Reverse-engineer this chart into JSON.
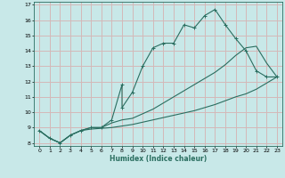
{
  "xlabel": "Humidex (Indice chaleur)",
  "bg_color": "#c8e8e8",
  "grid_color": "#d4b8b8",
  "line_color": "#2a6e60",
  "xlim": [
    -0.5,
    23.5
  ],
  "ylim": [
    7.8,
    17.2
  ],
  "xticks": [
    0,
    1,
    2,
    3,
    4,
    5,
    6,
    7,
    8,
    9,
    10,
    11,
    12,
    13,
    14,
    15,
    16,
    17,
    18,
    19,
    20,
    21,
    22,
    23
  ],
  "yticks": [
    8,
    9,
    10,
    11,
    12,
    13,
    14,
    15,
    16,
    17
  ],
  "line1_x": [
    0,
    1,
    2,
    3,
    4,
    5,
    6,
    7,
    8,
    8,
    9,
    10,
    11,
    12,
    13,
    14,
    15,
    16,
    17,
    18,
    19,
    20,
    21,
    22,
    23
  ],
  "line1_y": [
    8.8,
    8.3,
    8.0,
    8.5,
    8.8,
    9.0,
    9.0,
    9.5,
    11.8,
    10.3,
    11.3,
    13.0,
    14.2,
    14.5,
    14.5,
    15.7,
    15.5,
    16.3,
    16.7,
    15.7,
    14.8,
    14.0,
    12.7,
    12.3,
    12.3
  ],
  "line2_x": [
    0,
    1,
    2,
    3,
    4,
    5,
    6,
    7,
    8,
    9,
    10,
    11,
    12,
    13,
    14,
    15,
    16,
    17,
    18,
    19,
    20,
    21,
    22,
    23
  ],
  "line2_y": [
    8.8,
    8.3,
    8.0,
    8.5,
    8.8,
    8.9,
    8.95,
    9.0,
    9.1,
    9.2,
    9.35,
    9.5,
    9.65,
    9.8,
    9.95,
    10.1,
    10.3,
    10.5,
    10.75,
    11.0,
    11.2,
    11.5,
    11.9,
    12.3
  ],
  "line3_x": [
    0,
    1,
    2,
    3,
    4,
    5,
    6,
    7,
    8,
    9,
    10,
    11,
    12,
    13,
    14,
    15,
    16,
    17,
    18,
    19,
    20,
    21,
    22,
    23
  ],
  "line3_y": [
    8.8,
    8.3,
    8.0,
    8.5,
    8.8,
    9.0,
    9.0,
    9.3,
    9.5,
    9.6,
    9.9,
    10.2,
    10.6,
    11.0,
    11.4,
    11.8,
    12.2,
    12.6,
    13.1,
    13.7,
    14.2,
    14.3,
    13.2,
    12.3
  ]
}
